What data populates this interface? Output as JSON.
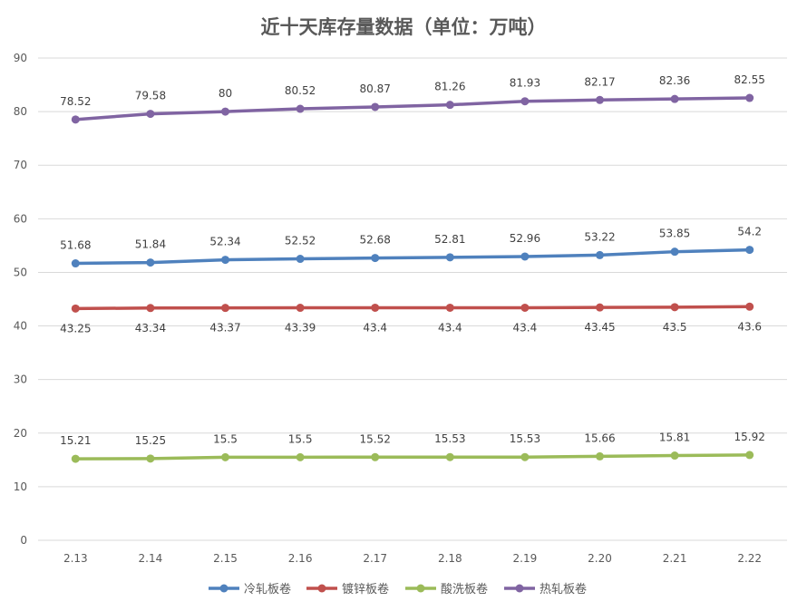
{
  "chart_data": {
    "type": "line",
    "title": "近十天库存量数据（单位：万吨）",
    "xlabel": "",
    "ylabel": "",
    "ylim": [
      0,
      90
    ],
    "yticks": [
      0,
      10,
      20,
      30,
      40,
      50,
      60,
      70,
      80,
      90
    ],
    "grid": true,
    "legend": "bottom",
    "categories": [
      "2.13",
      "2.14",
      "2.15",
      "2.16",
      "2.17",
      "2.18",
      "2.19",
      "2.20",
      "2.21",
      "2.22"
    ],
    "series": [
      {
        "name": "冷轧板卷",
        "color": "#4f81bd",
        "label_position": "above",
        "values": [
          51.68,
          51.84,
          52.34,
          52.52,
          52.68,
          52.81,
          52.96,
          53.22,
          53.85,
          54.2
        ]
      },
      {
        "name": "镀锌板卷",
        "color": "#c0504d",
        "label_position": "below",
        "values": [
          43.25,
          43.34,
          43.37,
          43.39,
          43.4,
          43.4,
          43.4,
          43.45,
          43.5,
          43.6
        ]
      },
      {
        "name": "酸洗板卷",
        "color": "#9bbb59",
        "label_position": "above",
        "values": [
          15.21,
          15.25,
          15.5,
          15.5,
          15.52,
          15.53,
          15.53,
          15.66,
          15.81,
          15.92
        ]
      },
      {
        "name": "热轧板卷",
        "color": "#8064a2",
        "label_position": "above",
        "values": [
          78.52,
          79.58,
          80,
          80.52,
          80.87,
          81.26,
          81.93,
          82.17,
          82.36,
          82.55
        ]
      }
    ]
  }
}
